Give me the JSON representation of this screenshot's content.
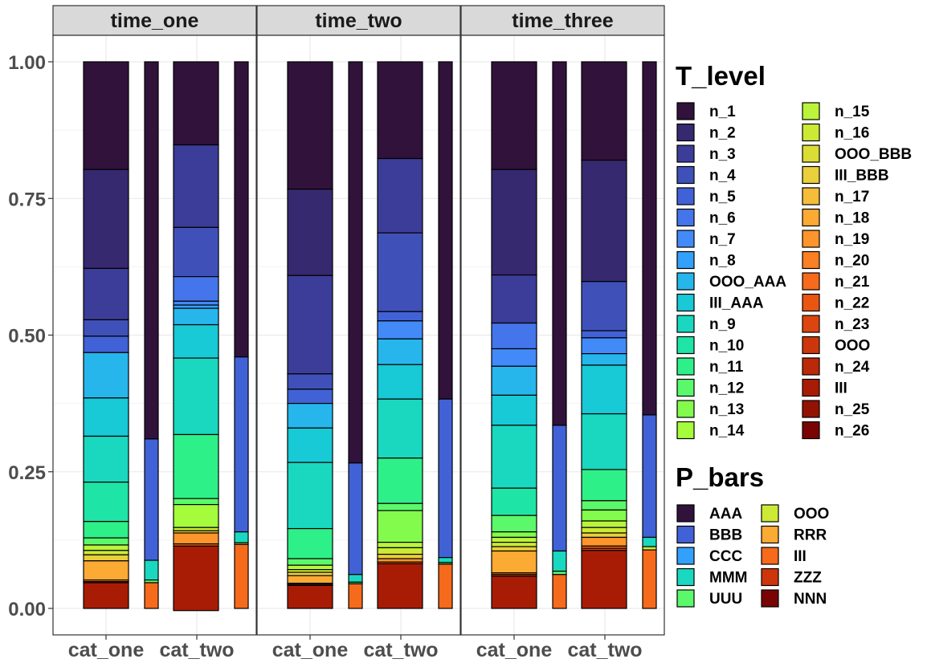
{
  "chart_data": {
    "type": "bar",
    "facets": [
      "time_one",
      "time_two",
      "time_three"
    ],
    "categories": [
      "cat_one",
      "cat_two"
    ],
    "y_ticks": [
      "0.00",
      "0.25",
      "0.50",
      "0.75",
      "1.00"
    ],
    "ylim": [
      0,
      1
    ],
    "grid": true,
    "legend_placement": "right",
    "legends": [
      {
        "title": "T_level",
        "entries": [
          {
            "label": "n_1",
            "color": "#30123b"
          },
          {
            "label": "n_2",
            "color": "#36296f"
          },
          {
            "label": "n_3",
            "color": "#3b3d98"
          },
          {
            "label": "n_4",
            "color": "#3f51b9"
          },
          {
            "label": "n_5",
            "color": "#4162d6"
          },
          {
            "label": "n_6",
            "color": "#4475ea"
          },
          {
            "label": "n_7",
            "color": "#438af9"
          },
          {
            "label": "n_8",
            "color": "#33a0fb"
          },
          {
            "label": "OOO_AAA",
            "color": "#27b6ec"
          },
          {
            "label": "III_AAA",
            "color": "#18c9d6"
          },
          {
            "label": "n_9",
            "color": "#1ad8bf"
          },
          {
            "label": "n_10",
            "color": "#1ee5a5"
          },
          {
            "label": "n_11",
            "color": "#2ef089"
          },
          {
            "label": "n_12",
            "color": "#5bf86c"
          },
          {
            "label": "n_13",
            "color": "#83fb4d"
          },
          {
            "label": "n_14",
            "color": "#a4fc3c"
          },
          {
            "label": "n_15",
            "color": "#baf43b"
          },
          {
            "label": "n_16",
            "color": "#ccea35"
          },
          {
            "label": "OOO_BBB",
            "color": "#dadd35"
          },
          {
            "label": "III_BBB",
            "color": "#e9cf3a"
          },
          {
            "label": "n_17",
            "color": "#f5bd39"
          },
          {
            "label": "n_18",
            "color": "#fbaa34"
          },
          {
            "label": "n_19",
            "color": "#fd952c"
          },
          {
            "label": "n_20",
            "color": "#fb7f23"
          },
          {
            "label": "n_21",
            "color": "#f56a1b"
          },
          {
            "label": "n_22",
            "color": "#ea5612"
          },
          {
            "label": "n_23",
            "color": "#dd4510"
          },
          {
            "label": "OOO",
            "color": "#cd360b"
          },
          {
            "label": "n_24",
            "color": "#bb2909"
          },
          {
            "label": "III",
            "color": "#a81c05"
          },
          {
            "label": "n_25",
            "color": "#941203"
          },
          {
            "label": "n_26",
            "color": "#7a0403"
          }
        ]
      },
      {
        "title": "P_bars",
        "entries": [
          {
            "label": "AAA",
            "color": "#30123b"
          },
          {
            "label": "BBB",
            "color": "#4162d6"
          },
          {
            "label": "CCC",
            "color": "#33a0fb"
          },
          {
            "label": "MMM",
            "color": "#1ad8bf"
          },
          {
            "label": "UUU",
            "color": "#5bf86c"
          },
          {
            "label": "OOO",
            "color": "#ccea35"
          },
          {
            "label": "RRR",
            "color": "#fbaa34"
          },
          {
            "label": "III",
            "color": "#f56a1b"
          },
          {
            "label": "ZZZ",
            "color": "#cd360b"
          },
          {
            "label": "NNN",
            "color": "#7a0403"
          }
        ]
      }
    ],
    "panels": [
      {
        "facet": "time_one",
        "t_level_bars": [
          {
            "category": "cat_one",
            "segments": [
              {
                "level": "n_1",
                "value": 0.197
              },
              {
                "level": "n_2",
                "value": 0.181
              },
              {
                "level": "n_3",
                "value": 0.094
              },
              {
                "level": "n_4",
                "value": 0.03
              },
              {
                "level": "n_5",
                "value": 0.03
              },
              {
                "level": "OOO_AAA",
                "value": 0.083
              },
              {
                "level": "III_AAA",
                "value": 0.07
              },
              {
                "level": "n_9",
                "value": 0.084
              },
              {
                "level": "n_10",
                "value": 0.072
              },
              {
                "level": "n_11",
                "value": 0.03
              },
              {
                "level": "n_12",
                "value": 0.013
              },
              {
                "level": "n_15",
                "value": 0.01
              },
              {
                "level": "n_16",
                "value": 0.008
              },
              {
                "level": "III_BBB",
                "value": 0.011
              },
              {
                "level": "n_18",
                "value": 0.035
              },
              {
                "level": "n_20",
                "value": 0.003
              },
              {
                "level": "n_22",
                "value": 0.002
              },
              {
                "level": "III",
                "value": 0.047
              }
            ]
          },
          {
            "category": "cat_two",
            "segments": [
              {
                "level": "n_1",
                "value": 0.152
              },
              {
                "level": "n_3",
                "value": 0.151
              },
              {
                "level": "n_4",
                "value": 0.09
              },
              {
                "level": "n_6",
                "value": 0.045
              },
              {
                "level": "n_7",
                "value": 0.007
              },
              {
                "level": "n_8",
                "value": 0.006
              },
              {
                "level": "OOO_AAA",
                "value": 0.03
              },
              {
                "level": "III_AAA",
                "value": 0.061
              },
              {
                "level": "n_9",
                "value": 0.14
              },
              {
                "level": "n_11",
                "value": 0.117
              },
              {
                "level": "n_12",
                "value": 0.011
              },
              {
                "level": "n_14",
                "value": 0.042
              },
              {
                "level": "n_16",
                "value": 0.006
              },
              {
                "level": "III_BBB",
                "value": 0.004
              },
              {
                "level": "n_19",
                "value": 0.02
              },
              {
                "level": "n_21",
                "value": 0.004
              },
              {
                "level": "III",
                "value": 0.118
              }
            ]
          }
        ],
        "p_bars": [
          {
            "category": "cat_one",
            "segments": [
              {
                "group": "AAA",
                "value": 0.69
              },
              {
                "group": "BBB",
                "value": 0.222
              },
              {
                "group": "MMM",
                "value": 0.036
              },
              {
                "group": "UUU",
                "value": 0.005
              },
              {
                "group": "III",
                "value": 0.047
              }
            ]
          },
          {
            "category": "cat_two",
            "segments": [
              {
                "group": "AAA",
                "value": 0.54
              },
              {
                "group": "BBB",
                "value": 0.32
              },
              {
                "group": "MMM",
                "value": 0.02
              },
              {
                "group": "OOO",
                "value": 0.003
              },
              {
                "group": "III",
                "value": 0.117
              }
            ]
          }
        ]
      },
      {
        "facet": "time_two",
        "t_level_bars": [
          {
            "category": "cat_one",
            "segments": [
              {
                "level": "n_1",
                "value": 0.233
              },
              {
                "level": "n_2",
                "value": 0.158
              },
              {
                "level": "n_3",
                "value": 0.18
              },
              {
                "level": "n_4",
                "value": 0.028
              },
              {
                "level": "n_5",
                "value": 0.026
              },
              {
                "level": "OOO_AAA",
                "value": 0.045
              },
              {
                "level": "III_AAA",
                "value": 0.063
              },
              {
                "level": "n_9",
                "value": 0.121
              },
              {
                "level": "n_11",
                "value": 0.055
              },
              {
                "level": "n_12",
                "value": 0.012
              },
              {
                "level": "n_15",
                "value": 0.008
              },
              {
                "level": "n_16",
                "value": 0.005
              },
              {
                "level": "III_BBB",
                "value": 0.006
              },
              {
                "level": "n_18",
                "value": 0.014
              },
              {
                "level": "n_20",
                "value": 0.002
              },
              {
                "level": "n_22",
                "value": 0.002
              },
              {
                "level": "III",
                "value": 0.042
              }
            ]
          },
          {
            "category": "cat_two",
            "segments": [
              {
                "level": "n_1",
                "value": 0.177
              },
              {
                "level": "n_3",
                "value": 0.136
              },
              {
                "level": "n_4",
                "value": 0.144
              },
              {
                "level": "n_5",
                "value": 0.017
              },
              {
                "level": "n_7",
                "value": 0.033
              },
              {
                "level": "OOO_AAA",
                "value": 0.047
              },
              {
                "level": "III_AAA",
                "value": 0.063
              },
              {
                "level": "n_9",
                "value": 0.108
              },
              {
                "level": "n_11",
                "value": 0.083
              },
              {
                "level": "n_12",
                "value": 0.013
              },
              {
                "level": "n_13",
                "value": 0.058
              },
              {
                "level": "n_15",
                "value": 0.01
              },
              {
                "level": "n_16",
                "value": 0.012
              },
              {
                "level": "III_BBB",
                "value": 0.008
              },
              {
                "level": "n_19",
                "value": 0.006
              },
              {
                "level": "n_21",
                "value": 0.003
              },
              {
                "level": "III",
                "value": 0.082
              }
            ]
          }
        ],
        "p_bars": [
          {
            "category": "cat_one",
            "segments": [
              {
                "group": "AAA",
                "value": 0.734
              },
              {
                "group": "BBB",
                "value": 0.204
              },
              {
                "group": "MMM",
                "value": 0.014
              },
              {
                "group": "UUU",
                "value": 0.003
              },
              {
                "group": "III",
                "value": 0.045
              }
            ]
          },
          {
            "category": "cat_two",
            "segments": [
              {
                "group": "AAA",
                "value": 0.617
              },
              {
                "group": "BBB",
                "value": 0.29
              },
              {
                "group": "MMM",
                "value": 0.009
              },
              {
                "group": "UUU",
                "value": 0.003
              },
              {
                "group": "III",
                "value": 0.081
              }
            ]
          }
        ]
      },
      {
        "facet": "time_three",
        "t_level_bars": [
          {
            "category": "cat_one",
            "segments": [
              {
                "level": "n_1",
                "value": 0.197
              },
              {
                "level": "n_2",
                "value": 0.193
              },
              {
                "level": "n_3",
                "value": 0.088
              },
              {
                "level": "n_6",
                "value": 0.047
              },
              {
                "level": "n_7",
                "value": 0.032
              },
              {
                "level": "OOO_AAA",
                "value": 0.053
              },
              {
                "level": "III_AAA",
                "value": 0.055
              },
              {
                "level": "n_9",
                "value": 0.115
              },
              {
                "level": "n_10",
                "value": 0.05
              },
              {
                "level": "n_12",
                "value": 0.03
              },
              {
                "level": "n_13",
                "value": 0.01
              },
              {
                "level": "n_15",
                "value": 0.009
              },
              {
                "level": "n_16",
                "value": 0.008
              },
              {
                "level": "III_BBB",
                "value": 0.008
              },
              {
                "level": "n_18",
                "value": 0.04
              },
              {
                "level": "n_20",
                "value": 0.003
              },
              {
                "level": "n_22",
                "value": 0.003
              },
              {
                "level": "III",
                "value": 0.059
              }
            ]
          },
          {
            "category": "cat_two",
            "segments": [
              {
                "level": "n_1",
                "value": 0.18
              },
              {
                "level": "n_2",
                "value": 0.222
              },
              {
                "level": "n_4",
                "value": 0.09
              },
              {
                "level": "n_5",
                "value": 0.013
              },
              {
                "level": "n_7",
                "value": 0.029
              },
              {
                "level": "OOO_AAA",
                "value": 0.021
              },
              {
                "level": "III_AAA",
                "value": 0.089
              },
              {
                "level": "n_9",
                "value": 0.102
              },
              {
                "level": "n_11",
                "value": 0.057
              },
              {
                "level": "n_12",
                "value": 0.017
              },
              {
                "level": "n_13",
                "value": 0.02
              },
              {
                "level": "n_15",
                "value": 0.012
              },
              {
                "level": "n_16",
                "value": 0.01
              },
              {
                "level": "III_BBB",
                "value": 0.008
              },
              {
                "level": "n_19",
                "value": 0.016
              },
              {
                "level": "n_21",
                "value": 0.004
              },
              {
                "level": "n_23",
                "value": 0.004
              },
              {
                "level": "III",
                "value": 0.106
              }
            ]
          }
        ],
        "p_bars": [
          {
            "category": "cat_one",
            "segments": [
              {
                "group": "AAA",
                "value": 0.665
              },
              {
                "group": "BBB",
                "value": 0.23
              },
              {
                "group": "MMM",
                "value": 0.037
              },
              {
                "group": "UUU",
                "value": 0.006
              },
              {
                "group": "III",
                "value": 0.062
              }
            ]
          },
          {
            "category": "cat_two",
            "segments": [
              {
                "group": "AAA",
                "value": 0.646
              },
              {
                "group": "BBB",
                "value": 0.224
              },
              {
                "group": "MMM",
                "value": 0.017
              },
              {
                "group": "OOO",
                "value": 0.006
              },
              {
                "group": "III",
                "value": 0.107
              }
            ]
          }
        ]
      }
    ]
  }
}
